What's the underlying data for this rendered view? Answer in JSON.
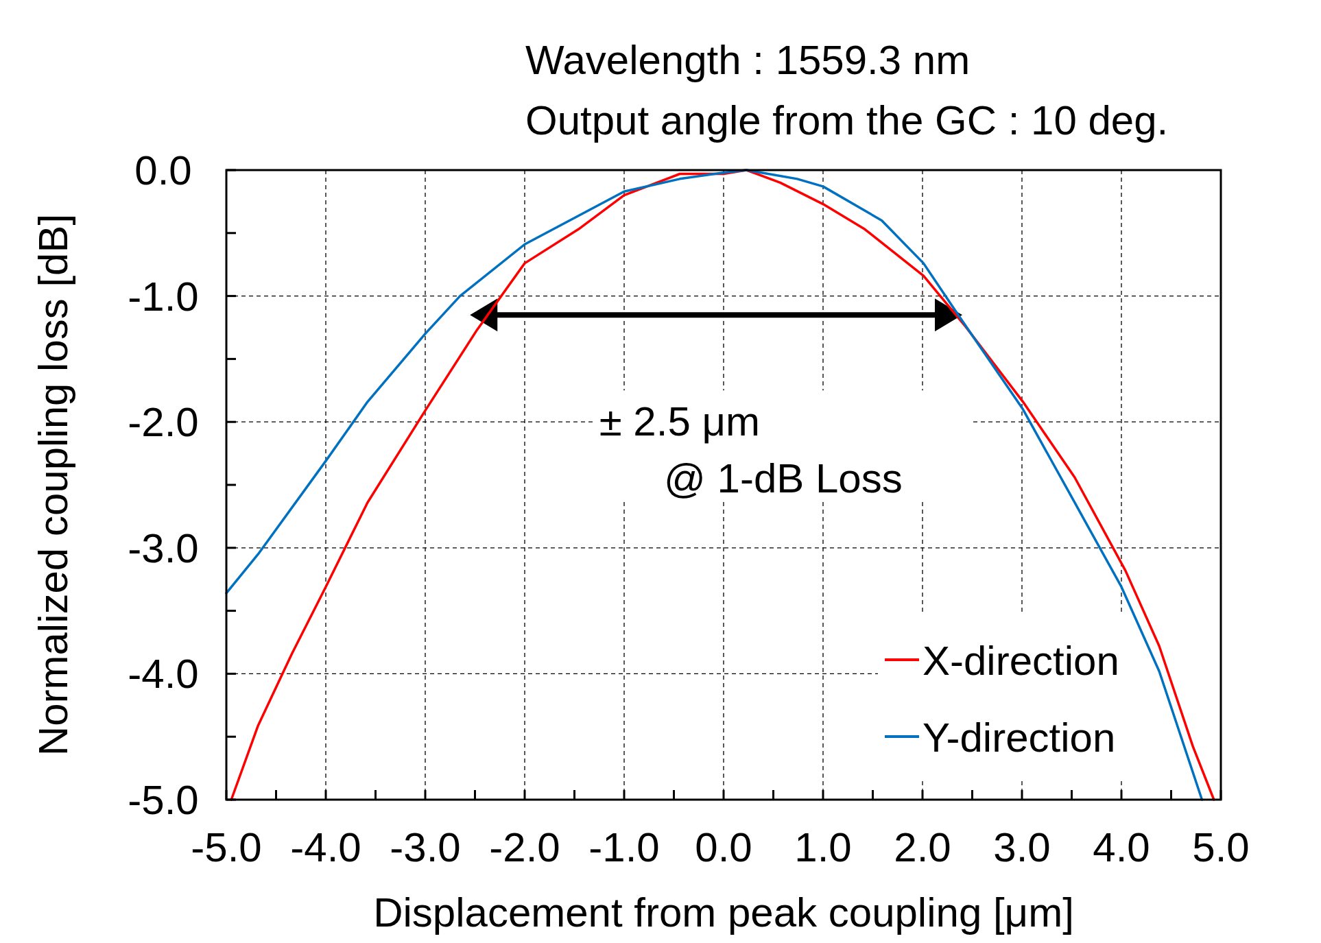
{
  "chart_data": {
    "type": "line",
    "xlabel": "Displacement from peak coupling [μm]",
    "ylabel": "Normalized coupling loss [dB]",
    "xlim": [
      -5,
      5
    ],
    "ylim": [
      -5,
      0
    ],
    "xticks": [
      {
        "value": -5,
        "label": "-5.0"
      },
      {
        "value": -4.5,
        "label": null
      },
      {
        "value": -4,
        "label": "-4.0"
      },
      {
        "value": -3.5,
        "label": null
      },
      {
        "value": -3,
        "label": "-3.0"
      },
      {
        "value": -2.5,
        "label": null
      },
      {
        "value": -2,
        "label": "-2.0"
      },
      {
        "value": -1.5,
        "label": null
      },
      {
        "value": -1,
        "label": "-1.0"
      },
      {
        "value": -0.5,
        "label": null
      },
      {
        "value": 0,
        "label": "0.0"
      },
      {
        "value": 0.5,
        "label": null
      },
      {
        "value": 1,
        "label": "1.0"
      },
      {
        "value": 1.5,
        "label": null
      },
      {
        "value": 2,
        "label": "2.0"
      },
      {
        "value": 2.5,
        "label": null
      },
      {
        "value": 3,
        "label": "3.0"
      },
      {
        "value": 3.5,
        "label": null
      },
      {
        "value": 4,
        "label": "4.0"
      },
      {
        "value": 4.5,
        "label": null
      },
      {
        "value": 5,
        "label": "5.0"
      }
    ],
    "yticks": [
      {
        "value": 0,
        "label": "0.0"
      },
      {
        "value": -0.5,
        "label": null
      },
      {
        "value": -1,
        "label": "-1.0"
      },
      {
        "value": -1.5,
        "label": null
      },
      {
        "value": -2,
        "label": "-2.0"
      },
      {
        "value": -2.5,
        "label": null
      },
      {
        "value": -3,
        "label": "-3.0"
      },
      {
        "value": -3.5,
        "label": null
      },
      {
        "value": -4,
        "label": "-4.0"
      },
      {
        "value": -4.5,
        "label": null
      },
      {
        "value": -5,
        "label": "-5.0"
      }
    ],
    "grid": true,
    "legend": "bottom right",
    "line_style": "solid",
    "annotations": [
      "Wavelength : 1559.3 nm",
      "Output angle from the GC : 10 deg.",
      "± 2.5 μm",
      "@ 1-dB Loss"
    ],
    "series": [
      {
        "name": "X-direction",
        "color": "#ff0000",
        "x": [
          -4.95,
          -4.68,
          -4.34,
          -4.0,
          -3.58,
          -3.0,
          -2.48,
          -2.0,
          -1.46,
          -1.0,
          -0.44,
          0,
          0.23,
          0.57,
          1.0,
          1.42,
          2.01,
          2.43,
          3.01,
          3.53,
          4.04,
          4.38,
          4.72,
          4.93
        ],
        "values": [
          -5.0,
          -4.41,
          -3.84,
          -3.31,
          -2.64,
          -1.91,
          -1.27,
          -0.74,
          -0.47,
          -0.2,
          -0.03,
          -0.03,
          0,
          -0.1,
          -0.27,
          -0.47,
          -0.84,
          -1.24,
          -1.84,
          -2.44,
          -3.18,
          -3.78,
          -4.58,
          -5.0
        ]
      },
      {
        "name": "Y-direction",
        "color": "#0070c0",
        "x": [
          -5.0,
          -4.68,
          -4.0,
          -3.58,
          -3.0,
          -2.65,
          -2.0,
          -1.0,
          -0.44,
          0,
          0.23,
          0.74,
          1.0,
          1.59,
          2.01,
          2.35,
          3.01,
          3.53,
          4.0,
          4.38,
          4.81
        ],
        "values": [
          -3.36,
          -3.05,
          -2.31,
          -1.84,
          -1.3,
          -1.0,
          -0.59,
          -0.17,
          -0.07,
          -0.02,
          0,
          -0.07,
          -0.13,
          -0.4,
          -0.74,
          -1.14,
          -1.9,
          -2.64,
          -3.31,
          -3.98,
          -5.0
        ]
      }
    ]
  }
}
